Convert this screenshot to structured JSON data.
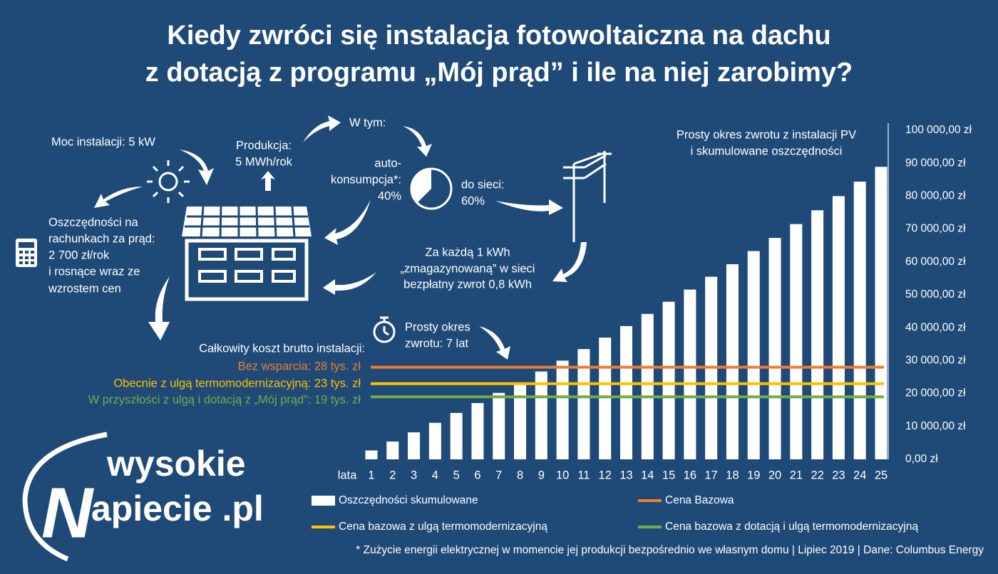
{
  "header": {
    "title": [
      "Kiedy zwróci się instalacja fotowoltaiczna na dachu",
      "z dotacją z programu „Mój prąd” i ile na niej zarobimy?"
    ]
  },
  "infographic": {
    "power": "Moc instalacji: 5 kW",
    "production": [
      "Produkcja:",
      "5 MWh/rok"
    ],
    "of_which": "W tym:",
    "self_consumption": [
      "auto-",
      "konsumpcja*:",
      "40%"
    ],
    "to_grid": [
      "do sieci:",
      "60%"
    ],
    "savings": [
      "Oszczędności na",
      "rachunkach za prąd:",
      "2 700 zł/rok",
      "i rosnące wraz ze",
      "wzrostem cen"
    ],
    "grid_return": [
      "Za każdą 1 kWh",
      "„zmagazynowaną” w sieci",
      "bezpłatny zwrot 0,8 kWh"
    ],
    "payback": [
      "Prosty okres",
      "zwrotu: 7 lat"
    ],
    "cost_heading": "Całkowity koszt brutto instalacji:",
    "costs": [
      "Bez wsparcia: 28 tys. zł",
      "Obecnie z ulgą termomodernizacyjną: 23 tys. zł",
      "W przyszłości z ulgą i dotacją z „Mój prąd”: 19 tys. zł"
    ],
    "footnote": "* Zużycie energii elektrycznej w momencie jej produkcji bezpośrednio we własnym domu | Lipiec 2019 | Dane: Columbus Energy"
  },
  "logo": {
    "line1": "wysokie",
    "initial": "N",
    "line2": "apiecie .pl"
  },
  "chart_data": {
    "type": "bar",
    "title": [
      "Prosty okres zwrotu z instalacji PV",
      "i skumulowane oszczędności"
    ],
    "x_label": "lata",
    "categories": [
      "1",
      "2",
      "3",
      "4",
      "5",
      "6",
      "7",
      "8",
      "9",
      "10",
      "11",
      "12",
      "13",
      "14",
      "15",
      "16",
      "17",
      "18",
      "19",
      "20",
      "21",
      "22",
      "23",
      "24",
      "25"
    ],
    "series": [
      {
        "name": "Oszczędności skumulowane",
        "color": "#ffffff",
        "values": [
          2700,
          5400,
          8200,
          11100,
          14100,
          17100,
          20200,
          23400,
          26700,
          30000,
          33500,
          37000,
          40500,
          44200,
          47900,
          51600,
          55500,
          59300,
          63300,
          67300,
          71500,
          75700,
          80000,
          84400,
          88900
        ]
      },
      {
        "name": "Cena Bazowa",
        "color": "#ed7d31",
        "value": 28000
      },
      {
        "name": "Cena bazowa z ulgą termomodernizacyjną",
        "color": "#ffc000",
        "value": 23000
      },
      {
        "name": "Cena bazowa z dotacją i ulgą termomodernizacyjną",
        "color": "#70ad47",
        "value": 19000
      }
    ],
    "ylim": [
      0,
      100000
    ],
    "yticks": [
      {
        "value": 0,
        "label": "0,00 zł"
      },
      {
        "value": 10000,
        "label": "10 000,00 zł"
      },
      {
        "value": 20000,
        "label": "20 000,00 zł"
      },
      {
        "value": 30000,
        "label": "30 000,00 zł"
      },
      {
        "value": 40000,
        "label": "40 000,00 zł"
      },
      {
        "value": 50000,
        "label": "50 000,00 zł"
      },
      {
        "value": 60000,
        "label": "60 000,00 zł"
      },
      {
        "value": 70000,
        "label": "70 000,00 zł"
      },
      {
        "value": 80000,
        "label": "80 000,00 zł"
      },
      {
        "value": 90000,
        "label": "90 000,00 zł"
      },
      {
        "value": 100000,
        "label": "100 000,00 zł"
      }
    ],
    "grid": false
  }
}
